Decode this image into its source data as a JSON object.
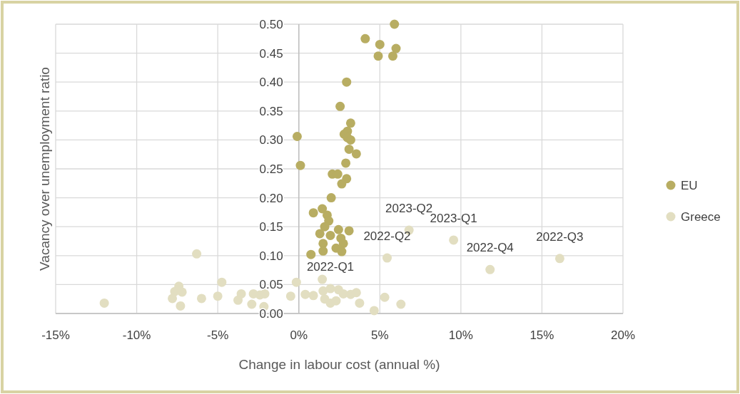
{
  "chart_data": {
    "type": "scatter",
    "xlabel": "Change in labour cost (annual %)",
    "ylabel": "Vacancy over unemployment ratio",
    "xlim": [
      -15,
      20
    ],
    "xticks": [
      {
        "value": -15,
        "label": "-15%"
      },
      {
        "value": -10,
        "label": "-10%"
      },
      {
        "value": -5,
        "label": "-5%"
      },
      {
        "value": 0,
        "label": "0%"
      },
      {
        "value": 5,
        "label": "5%"
      },
      {
        "value": 10,
        "label": "10%"
      },
      {
        "value": 15,
        "label": "15%"
      },
      {
        "value": 20,
        "label": "20%"
      }
    ],
    "ylim": [
      0,
      0.5
    ],
    "yticks": [
      {
        "value": 0,
        "label": "0.00"
      },
      {
        "value": 0.05,
        "label": "0.05"
      },
      {
        "value": 0.1,
        "label": "0.10"
      },
      {
        "value": 0.15,
        "label": "0.15"
      },
      {
        "value": 0.2,
        "label": "0.20"
      },
      {
        "value": 0.25,
        "label": "0.25"
      },
      {
        "value": 0.3,
        "label": "0.30"
      },
      {
        "value": 0.35,
        "label": "0.35"
      },
      {
        "value": 0.4,
        "label": "0.40"
      },
      {
        "value": 0.45,
        "label": "0.45"
      },
      {
        "value": 0.5,
        "label": "0.50"
      }
    ],
    "grid": true,
    "legend": "right",
    "marker": "circle",
    "series": [
      {
        "name": "EU",
        "color": "#b8ad62",
        "x": [
          5.9,
          4.1,
          5.0,
          6.0,
          4.9,
          5.8,
          2.95,
          2.55,
          3.2,
          3.0,
          2.8,
          3.0,
          3.2,
          -0.1,
          0.1,
          3.55,
          3.1,
          2.9,
          2.07,
          2.4,
          2.95,
          2.65,
          2.0,
          0.9,
          1.45,
          1.75,
          1.85,
          1.6,
          3.1,
          2.45,
          1.3,
          1.95,
          2.6,
          1.5,
          2.75,
          2.3,
          2.65,
          1.5,
          0.75
        ],
        "values": [
          0.5,
          0.475,
          0.465,
          0.458,
          0.445,
          0.445,
          0.4,
          0.358,
          0.329,
          0.315,
          0.31,
          0.304,
          0.3,
          0.306,
          0.256,
          0.276,
          0.284,
          0.26,
          0.241,
          0.241,
          0.233,
          0.224,
          0.2,
          0.174,
          0.181,
          0.17,
          0.16,
          0.15,
          0.143,
          0.145,
          0.138,
          0.135,
          0.13,
          0.121,
          0.121,
          0.113,
          0.107,
          0.108,
          0.102
        ]
      },
      {
        "name": "Greece",
        "color": "#e2dec1",
        "x": [
          -12.0,
          -6.3,
          -7.4,
          -7.65,
          -7.2,
          -7.8,
          -7.3,
          -6.0,
          -4.75,
          -5.0,
          -3.75,
          -3.55,
          -2.8,
          -2.9,
          -2.15,
          -2.1,
          -2.4,
          -0.5,
          -0.15,
          1.45,
          0.4,
          0.9,
          1.5,
          1.95,
          2.45,
          1.6,
          1.95,
          2.3,
          2.75,
          3.2,
          3.55,
          3.75,
          4.65,
          5.3,
          6.3,
          5.45,
          6.8,
          9.55,
          11.8,
          16.1
        ],
        "values": [
          0.018,
          0.103,
          0.047,
          0.038,
          0.037,
          0.026,
          0.013,
          0.026,
          0.054,
          0.03,
          0.023,
          0.034,
          0.034,
          0.016,
          0.012,
          0.034,
          0.032,
          0.03,
          0.054,
          0.059,
          0.033,
          0.031,
          0.039,
          0.043,
          0.041,
          0.025,
          0.018,
          0.022,
          0.034,
          0.033,
          0.036,
          0.018,
          0.005,
          0.028,
          0.016,
          0.096,
          0.144,
          0.127,
          0.076,
          0.095
        ]
      }
    ],
    "annotations": [
      {
        "text": "2022-Q1",
        "x": 1.95,
        "y": 0.043
      },
      {
        "text": "2022-Q2",
        "x": 5.45,
        "y": 0.096
      },
      {
        "text": "2022-Q3",
        "x": 16.1,
        "y": 0.095
      },
      {
        "text": "2022-Q4",
        "x": 11.8,
        "y": 0.076
      },
      {
        "text": "2023-Q1",
        "x": 9.55,
        "y": 0.127
      },
      {
        "text": "2023-Q2",
        "x": 6.8,
        "y": 0.144
      }
    ]
  }
}
